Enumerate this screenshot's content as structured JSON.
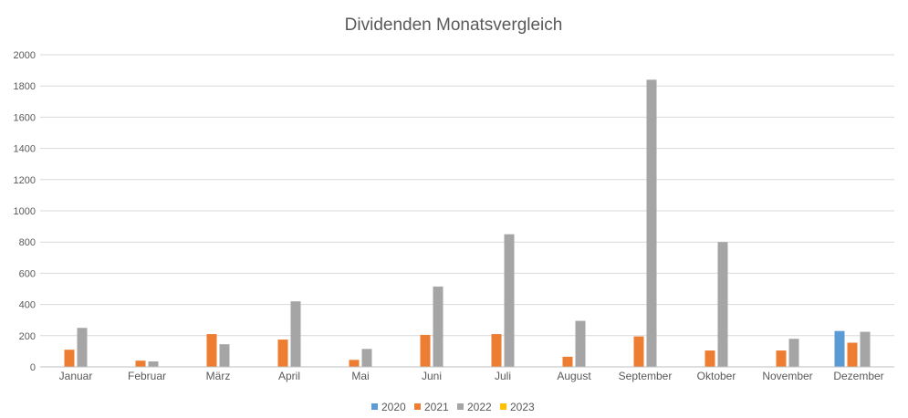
{
  "chart_data": {
    "type": "bar",
    "title": "Dividenden Monatsvergleich",
    "xlabel": "",
    "ylabel": "",
    "ylim": [
      0,
      2000
    ],
    "yticks": [
      0,
      200,
      400,
      600,
      800,
      1000,
      1200,
      1400,
      1600,
      1800,
      2000
    ],
    "grid": true,
    "legend_position": "bottom",
    "categories": [
      "Januar",
      "Februar",
      "März",
      "April",
      "Mai",
      "Juni",
      "Juli",
      "August",
      "September",
      "Oktober",
      "November",
      "Dezember"
    ],
    "series": [
      {
        "name": "2020",
        "color": "#5b9bd5",
        "values": [
          0,
          0,
          0,
          0,
          0,
          0,
          0,
          0,
          0,
          0,
          0,
          230
        ]
      },
      {
        "name": "2021",
        "color": "#ed7d31",
        "values": [
          110,
          40,
          210,
          175,
          45,
          205,
          210,
          65,
          195,
          105,
          105,
          155
        ]
      },
      {
        "name": "2022",
        "color": "#a5a5a5",
        "values": [
          250,
          35,
          145,
          420,
          115,
          515,
          850,
          295,
          1840,
          800,
          180,
          225
        ]
      },
      {
        "name": "2023",
        "color": "#ffc000",
        "values": [
          0,
          0,
          0,
          0,
          0,
          0,
          0,
          0,
          0,
          0,
          0,
          0
        ]
      }
    ]
  }
}
